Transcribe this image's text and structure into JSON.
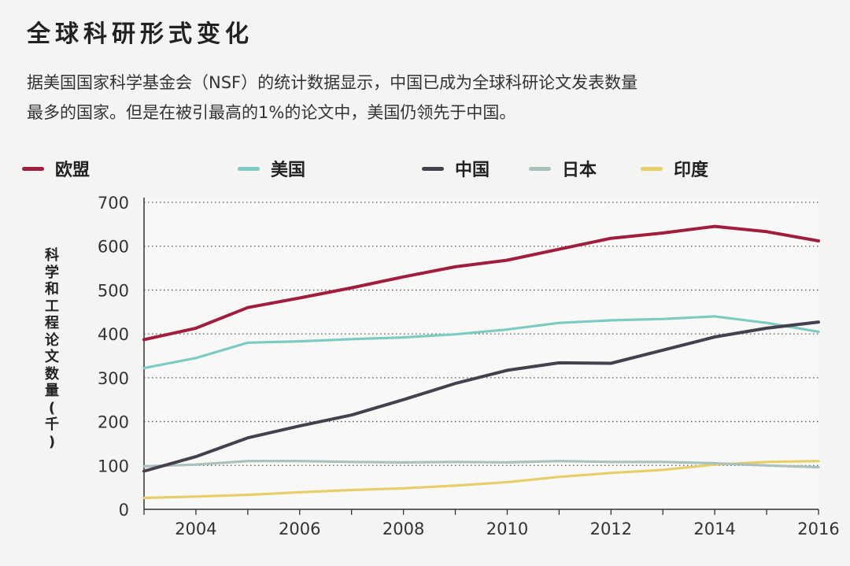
{
  "title": "全球科研形式变化",
  "subtitle_lines": [
    "据美国国家科学基金会（NSF）的统计数据显示，中国已成为全球科研论文发表数量",
    "最多的国家。但是在被引最高的1%的论文中，美国仍领先于中国。"
  ],
  "colors": {
    "eu": "#a01d3e",
    "us": "#7ecbc3",
    "china": "#46404e",
    "japan": "#a9c0bd",
    "india": "#e6cf6a"
  },
  "chart_data": {
    "type": "line",
    "title": "全球科研形式变化",
    "xlabel": "",
    "ylabel": "科学和工程论文数量（千）",
    "ylabel_chars": [
      "科",
      "学",
      "和",
      "工",
      "程",
      "论",
      "文",
      "数",
      "量",
      "(",
      "千",
      ")"
    ],
    "x": [
      2003,
      2004,
      2005,
      2006,
      2007,
      2008,
      2009,
      2010,
      2011,
      2012,
      2013,
      2014,
      2015,
      2016
    ],
    "xlim": [
      2003,
      2016
    ],
    "ylim": [
      0,
      700
    ],
    "xticks": [
      "2004",
      "2006",
      "2008",
      "2010",
      "2012",
      "2014",
      "2016"
    ],
    "yticks": [
      "0",
      "100",
      "200",
      "300",
      "400",
      "500",
      "600",
      "700"
    ],
    "grid": "horizontal-dotted",
    "legend_position": "top",
    "series": [
      {
        "key": "eu",
        "name": "欧盟",
        "values": [
          387,
          413,
          460,
          482,
          505,
          530,
          553,
          568,
          593,
          618,
          630,
          645,
          633,
          612
        ]
      },
      {
        "key": "us",
        "name": "美国",
        "values": [
          322,
          345,
          380,
          383,
          388,
          392,
          399,
          410,
          425,
          431,
          434,
          440,
          425,
          405
        ]
      },
      {
        "key": "china",
        "name": "中国",
        "values": [
          87,
          120,
          163,
          190,
          215,
          250,
          287,
          317,
          334,
          333,
          363,
          393,
          413,
          427
        ]
      },
      {
        "key": "japan",
        "name": "日本",
        "values": [
          98,
          102,
          110,
          110,
          108,
          107,
          108,
          107,
          110,
          108,
          108,
          105,
          100,
          96
        ]
      },
      {
        "key": "india",
        "name": "印度",
        "values": [
          26,
          29,
          33,
          39,
          44,
          48,
          54,
          62,
          74,
          83,
          90,
          102,
          108,
          110
        ]
      }
    ]
  }
}
